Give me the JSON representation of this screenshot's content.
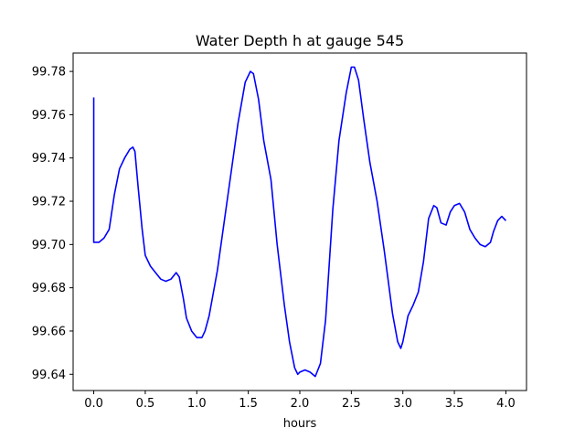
{
  "chart_data": {
    "type": "line",
    "title": "Water Depth h at gauge 545",
    "xlabel": "hours",
    "ylabel": "",
    "xlim": [
      -0.2,
      4.2
    ],
    "ylim": [
      99.6325,
      99.7885
    ],
    "xticks": [
      "0.0",
      "0.5",
      "1.0",
      "1.5",
      "2.0",
      "2.5",
      "3.0",
      "3.5",
      "4.0"
    ],
    "xtick_values": [
      0,
      0.5,
      1.0,
      1.5,
      2.0,
      2.5,
      3.0,
      3.5,
      4.0
    ],
    "yticks": [
      "99.64",
      "99.66",
      "99.68",
      "99.70",
      "99.72",
      "99.74",
      "99.76",
      "99.78"
    ],
    "ytick_values": [
      99.64,
      99.66,
      99.68,
      99.7,
      99.72,
      99.74,
      99.76,
      99.78
    ],
    "grid": false,
    "series": [
      {
        "color": "#0000ff",
        "x": [
          0.0,
          0.0,
          0.05,
          0.1,
          0.15,
          0.2,
          0.25,
          0.3,
          0.35,
          0.38,
          0.4,
          0.43,
          0.47,
          0.5,
          0.55,
          0.6,
          0.65,
          0.7,
          0.75,
          0.8,
          0.83,
          0.87,
          0.9,
          0.95,
          1.0,
          1.05,
          1.08,
          1.12,
          1.2,
          1.3,
          1.4,
          1.47,
          1.52,
          1.55,
          1.6,
          1.65,
          1.72,
          1.78,
          1.85,
          1.9,
          1.95,
          1.98,
          2.0,
          2.05,
          2.1,
          2.15,
          2.2,
          2.25,
          2.32,
          2.38,
          2.45,
          2.5,
          2.53,
          2.57,
          2.62,
          2.68,
          2.75,
          2.82,
          2.9,
          2.95,
          2.98,
          3.0,
          3.05,
          3.1,
          3.15,
          3.2,
          3.25,
          3.3,
          3.33,
          3.37,
          3.42,
          3.46,
          3.5,
          3.55,
          3.6,
          3.65,
          3.7,
          3.75,
          3.8,
          3.85,
          3.88,
          3.92,
          3.96,
          4.0
        ],
        "y": [
          99.768,
          99.701,
          99.701,
          99.703,
          99.707,
          99.723,
          99.735,
          99.74,
          99.744,
          99.745,
          99.743,
          99.727,
          99.707,
          99.695,
          99.69,
          99.687,
          99.684,
          99.683,
          99.684,
          99.687,
          99.685,
          99.675,
          99.666,
          99.66,
          99.657,
          99.657,
          99.66,
          99.667,
          99.688,
          99.722,
          99.756,
          99.775,
          99.78,
          99.779,
          99.767,
          99.748,
          99.73,
          99.7,
          99.672,
          99.655,
          99.643,
          99.64,
          99.641,
          99.642,
          99.641,
          99.639,
          99.645,
          99.665,
          99.716,
          99.748,
          99.77,
          99.782,
          99.782,
          99.776,
          99.758,
          99.738,
          99.72,
          99.697,
          99.668,
          99.655,
          99.652,
          99.655,
          99.667,
          99.672,
          99.678,
          99.692,
          99.712,
          99.718,
          99.717,
          99.71,
          99.709,
          99.715,
          99.718,
          99.719,
          99.715,
          99.707,
          99.703,
          99.7,
          99.699,
          99.701,
          99.706,
          99.711,
          99.713,
          99.711
        ]
      }
    ]
  }
}
